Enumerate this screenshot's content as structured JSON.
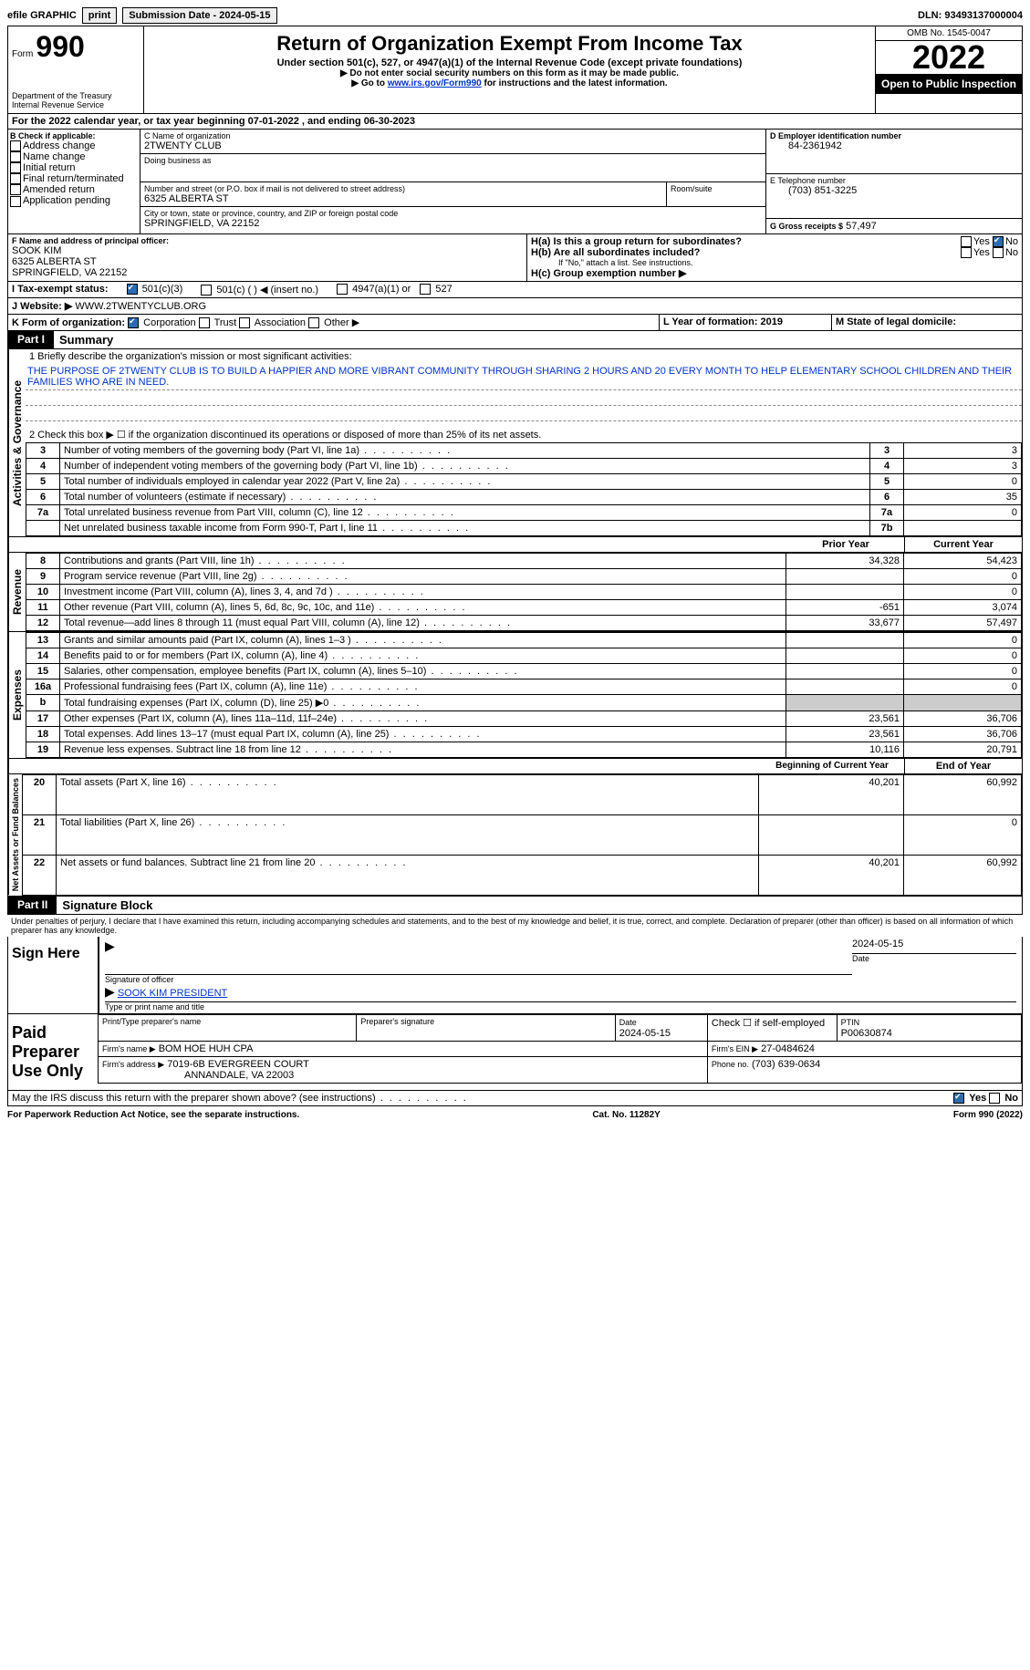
{
  "topbar": {
    "efile": "efile GRAPHIC",
    "print": "print",
    "submission": "Submission Date - 2024-05-15",
    "dln": "DLN: 93493137000004"
  },
  "header": {
    "form_prefix": "Form",
    "form_no": "990",
    "dept": "Department of the Treasury",
    "irs": "Internal Revenue Service",
    "title": "Return of Organization Exempt From Income Tax",
    "subtitle": "Under section 501(c), 527, or 4947(a)(1) of the Internal Revenue Code (except private foundations)",
    "note1": "▶ Do not enter social security numbers on this form as it may be made public.",
    "note2_prefix": "▶ Go to ",
    "note2_link": "www.irs.gov/Form990",
    "note2_suffix": " for instructions and the latest information.",
    "omb": "OMB No. 1545-0047",
    "year": "2022",
    "otpi": "Open to Public Inspection"
  },
  "lineA": "For the 2022 calendar year, or tax year beginning 07-01-2022   , and ending 06-30-2023",
  "sectionB": {
    "label": "B Check if applicable:",
    "items": [
      "Address change",
      "Name change",
      "Initial return",
      "Final return/terminated",
      "Amended return",
      "Application pending"
    ]
  },
  "sectionC": {
    "label_name": "C Name of organization",
    "org": "2TWENTY CLUB",
    "dba_label": "Doing business as",
    "addr_label": "Number and street (or P.O. box if mail is not delivered to street address)",
    "room_label": "Room/suite",
    "addr": "6325 ALBERTA ST",
    "city_label": "City or town, state or province, country, and ZIP or foreign postal code",
    "city": "SPRINGFIELD, VA  22152"
  },
  "sectionD": {
    "label": "D Employer identification number",
    "value": "84-2361942"
  },
  "sectionE": {
    "label": "E Telephone number",
    "value": "(703) 851-3225"
  },
  "sectionG": {
    "label": "G Gross receipts $",
    "value": "57,497"
  },
  "sectionF": {
    "label": "F  Name and address of principal officer:",
    "name": "SOOK KIM",
    "addr": "6325 ALBERTA ST",
    "city": "SPRINGFIELD, VA  22152"
  },
  "sectionH": {
    "a": "H(a)  Is this a group return for subordinates?",
    "b": "H(b)  Are all subordinates included?",
    "b_note": "If \"No,\" attach a list. See instructions.",
    "c": "H(c)  Group exemption number ▶",
    "yes": "Yes",
    "no": "No"
  },
  "sectionI": {
    "label": "I   Tax-exempt status:",
    "o1": "501(c)(3)",
    "o2": "501(c) (  ) ◀ (insert no.)",
    "o3": "4947(a)(1) or",
    "o4": "527"
  },
  "sectionJ": {
    "label": "J   Website: ▶",
    "value": "WWW.2TWENTYCLUB.ORG"
  },
  "sectionK": {
    "label": "K Form of organization:",
    "o1": "Corporation",
    "o2": "Trust",
    "o3": "Association",
    "o4": "Other ▶"
  },
  "sectionL": {
    "label": "L Year of formation: 2019"
  },
  "sectionM": {
    "label": "M State of legal domicile:"
  },
  "part1": {
    "header": "Part I",
    "title": "Summary",
    "l1_label": "1  Briefly describe the organization's mission or most significant activities:",
    "mission": "THE PURPOSE OF 2TWENTY CLUB IS TO BUILD A HAPPIER AND MORE VIBRANT COMMUNITY THROUGH SHARING 2 HOURS AND 20 EVERY MONTH TO HELP ELEMENTARY SCHOOL CHILDREN AND THEIR FAMILIES WHO ARE IN NEED.",
    "l2": "2   Check this box ▶ ☐  if the organization discontinued its operations or disposed of more than 25% of its net assets.",
    "rows_top": [
      {
        "n": "3",
        "t": "Number of voting members of the governing body (Part VI, line 1a)",
        "b": "3",
        "v": "3"
      },
      {
        "n": "4",
        "t": "Number of independent voting members of the governing body (Part VI, line 1b)",
        "b": "4",
        "v": "3"
      },
      {
        "n": "5",
        "t": "Total number of individuals employed in calendar year 2022 (Part V, line 2a)",
        "b": "5",
        "v": "0"
      },
      {
        "n": "6",
        "t": "Total number of volunteers (estimate if necessary)",
        "b": "6",
        "v": "35"
      },
      {
        "n": "7a",
        "t": "Total unrelated business revenue from Part VIII, column (C), line 12",
        "b": "7a",
        "v": "0"
      },
      {
        "n": "",
        "t": "Net unrelated business taxable income from Form 990-T, Part I, line 11",
        "b": "7b",
        "v": ""
      }
    ],
    "col_prior": "Prior Year",
    "col_current": "Current Year",
    "revenue": [
      {
        "n": "8",
        "t": "Contributions and grants (Part VIII, line 1h)",
        "p": "34,328",
        "c": "54,423"
      },
      {
        "n": "9",
        "t": "Program service revenue (Part VIII, line 2g)",
        "p": "",
        "c": "0"
      },
      {
        "n": "10",
        "t": "Investment income (Part VIII, column (A), lines 3, 4, and 7d )",
        "p": "",
        "c": "0"
      },
      {
        "n": "11",
        "t": "Other revenue (Part VIII, column (A), lines 5, 6d, 8c, 9c, 10c, and 11e)",
        "p": "-651",
        "c": "3,074"
      },
      {
        "n": "12",
        "t": "Total revenue—add lines 8 through 11 (must equal Part VIII, column (A), line 12)",
        "p": "33,677",
        "c": "57,497"
      }
    ],
    "expenses": [
      {
        "n": "13",
        "t": "Grants and similar amounts paid (Part IX, column (A), lines 1–3 )",
        "p": "",
        "c": "0"
      },
      {
        "n": "14",
        "t": "Benefits paid to or for members (Part IX, column (A), line 4)",
        "p": "",
        "c": "0"
      },
      {
        "n": "15",
        "t": "Salaries, other compensation, employee benefits (Part IX, column (A), lines 5–10)",
        "p": "",
        "c": "0"
      },
      {
        "n": "16a",
        "t": "Professional fundraising fees (Part IX, column (A), line 11e)",
        "p": "",
        "c": "0"
      },
      {
        "n": "b",
        "t": "Total fundraising expenses (Part IX, column (D), line 25) ▶0",
        "p": "gray",
        "c": "gray"
      },
      {
        "n": "17",
        "t": "Other expenses (Part IX, column (A), lines 11a–11d, 11f–24e)",
        "p": "23,561",
        "c": "36,706"
      },
      {
        "n": "18",
        "t": "Total expenses. Add lines 13–17 (must equal Part IX, column (A), line 25)",
        "p": "23,561",
        "c": "36,706"
      },
      {
        "n": "19",
        "t": "Revenue less expenses. Subtract line 18 from line 12",
        "p": "10,116",
        "c": "20,791"
      }
    ],
    "col_begin": "Beginning of Current Year",
    "col_end": "End of Year",
    "netassets": [
      {
        "n": "20",
        "t": "Total assets (Part X, line 16)",
        "p": "40,201",
        "c": "60,992"
      },
      {
        "n": "21",
        "t": "Total liabilities (Part X, line 26)",
        "p": "",
        "c": "0"
      },
      {
        "n": "22",
        "t": "Net assets or fund balances. Subtract line 21 from line 20",
        "p": "40,201",
        "c": "60,992"
      }
    ],
    "side_ag": "Activities & Governance",
    "side_rev": "Revenue",
    "side_exp": "Expenses",
    "side_na": "Net Assets or Fund Balances"
  },
  "part2": {
    "header": "Part II",
    "title": "Signature Block",
    "decl": "Under penalties of perjury, I declare that I have examined this return, including accompanying schedules and statements, and to the best of my knowledge and belief, it is true, correct, and complete. Declaration of preparer (other than officer) is based on all information of which preparer has any knowledge.",
    "sign_here": "Sign Here",
    "sig_officer": "Signature of officer",
    "sig_date_v": "2024-05-15",
    "sig_date": "Date",
    "sig_name": "SOOK KIM PRESIDENT",
    "sig_type": "Type or print name and title",
    "paid": "Paid Preparer Use Only",
    "prep_name_h": "Print/Type preparer's name",
    "prep_sig_h": "Preparer's signature",
    "prep_date_h": "Date",
    "prep_date_v": "2024-05-15",
    "prep_check": "Check ☐ if self-employed",
    "ptin_h": "PTIN",
    "ptin_v": "P00630874",
    "firm_name_h": "Firm's name    ▶",
    "firm_name": "BOM HOE HUH CPA",
    "firm_ein_h": "Firm's EIN ▶",
    "firm_ein": "27-0484624",
    "firm_addr_h": "Firm's address ▶",
    "firm_addr1": "7019-6B EVERGREEN COURT",
    "firm_addr2": "ANNANDALE, VA  22003",
    "phone_h": "Phone no.",
    "phone": "(703) 639-0634",
    "discuss": "May the IRS discuss this return with the preparer shown above? (see instructions)",
    "yes": "Yes",
    "no": "No"
  },
  "footer": {
    "pra": "For Paperwork Reduction Act Notice, see the separate instructions.",
    "cat": "Cat. No. 11282Y",
    "form": "Form 990 (2022)"
  }
}
